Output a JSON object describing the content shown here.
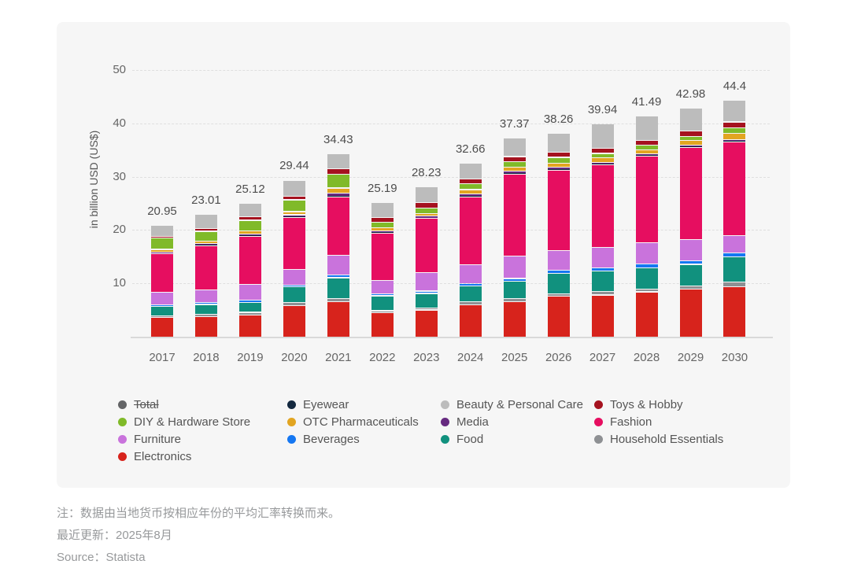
{
  "chart_data": {
    "type": "bar",
    "stacked": true,
    "title": "",
    "xlabel": "",
    "ylabel": "in billion USD (US$)",
    "ylim": [
      0,
      50
    ],
    "yticks": [
      10,
      20,
      30,
      40,
      50
    ],
    "grid": "horizontal-dashed",
    "categories": [
      "2017",
      "2018",
      "2019",
      "2020",
      "2021",
      "2022",
      "2023",
      "2024",
      "2025",
      "2026",
      "2027",
      "2028",
      "2029",
      "2030"
    ],
    "totals": [
      20.95,
      23.01,
      25.12,
      29.44,
      34.43,
      25.19,
      28.23,
      32.66,
      37.37,
      38.26,
      39.94,
      41.49,
      42.98,
      44.4
    ],
    "total_labels": [
      "20.95",
      "23.01",
      "25.12",
      "29.44",
      "34.43",
      "25.19",
      "28.23",
      "32.66",
      "37.37",
      "38.26",
      "39.94",
      "41.49",
      "42.98",
      "44.4"
    ],
    "series": [
      {
        "name": "Electronics",
        "color": "#d7231c",
        "values": [
          3.7,
          3.85,
          4.2,
          5.9,
          6.6,
          4.62,
          5.1,
          6.1,
          6.7,
          7.7,
          7.9,
          8.5,
          9.0,
          9.5
        ]
      },
      {
        "name": "Household Essentials",
        "color": "#8e9093",
        "values": [
          0.35,
          0.4,
          0.45,
          0.65,
          0.65,
          0.35,
          0.4,
          0.55,
          0.55,
          0.45,
          0.7,
          0.55,
          0.55,
          0.85
        ]
      },
      {
        "name": "Food",
        "color": "#11917e",
        "values": [
          1.7,
          1.9,
          1.8,
          2.85,
          3.9,
          2.8,
          2.7,
          2.9,
          3.2,
          3.8,
          3.85,
          4.0,
          4.1,
          4.7
        ]
      },
      {
        "name": "Beverages",
        "color": "#1577f2",
        "values": [
          0.25,
          0.3,
          0.45,
          0.4,
          0.55,
          0.3,
          0.45,
          0.55,
          0.55,
          0.55,
          0.55,
          0.65,
          0.7,
          0.75
        ]
      },
      {
        "name": "Furniture",
        "color": "#c973dc",
        "values": [
          2.4,
          2.45,
          3.0,
          2.9,
          3.7,
          2.6,
          3.5,
          3.45,
          4.2,
          3.75,
          3.8,
          4.0,
          4.0,
          3.2
        ]
      },
      {
        "name": "Fashion",
        "color": "#e60e60",
        "values": [
          7.2,
          8.3,
          9.0,
          9.8,
          10.85,
          8.9,
          10.1,
          12.8,
          15.4,
          15.1,
          15.5,
          16.2,
          17.2,
          17.6
        ]
      },
      {
        "name": "Eyewear",
        "color": "#13283f",
        "values": [
          0.05,
          0.06,
          0.07,
          0.09,
          0.1,
          0.07,
          0.08,
          0.09,
          0.1,
          0.1,
          0.1,
          0.1,
          0.1,
          0.1
        ]
      },
      {
        "name": "Media",
        "color": "#662a80",
        "values": [
          0.3,
          0.3,
          0.4,
          0.35,
          0.6,
          0.3,
          0.35,
          0.4,
          0.45,
          0.4,
          0.4,
          0.35,
          0.35,
          0.3
        ]
      },
      {
        "name": "OTC Pharmaceuticals",
        "color": "#e2a521",
        "values": [
          0.5,
          0.5,
          0.55,
          0.6,
          1.0,
          0.55,
          0.55,
          0.82,
          0.67,
          0.76,
          0.8,
          0.79,
          0.83,
          1.25
        ]
      },
      {
        "name": "DIY & Hardware Store",
        "color": "#80ba29",
        "values": [
          2.1,
          1.8,
          2.0,
          2.2,
          2.6,
          1.1,
          1.0,
          1.1,
          1.1,
          1.1,
          0.84,
          0.85,
          0.85,
          1.0
        ]
      },
      {
        "name": "Toys & Hobby",
        "color": "#a5121f",
        "values": [
          0.3,
          0.55,
          0.7,
          0.7,
          1.0,
          0.9,
          0.95,
          0.95,
          0.95,
          0.95,
          0.95,
          0.95,
          0.95,
          1.1
        ]
      },
      {
        "name": "Beauty & Personal Care",
        "color": "#bcbcbc",
        "values": [
          2.1,
          2.6,
          2.5,
          3.0,
          2.88,
          2.7,
          3.05,
          2.95,
          3.5,
          3.6,
          4.55,
          4.55,
          4.35,
          4.05
        ]
      }
    ],
    "legend_position": "bottom"
  },
  "legend": {
    "columns": [
      [
        {
          "label": "Total",
          "color": "#636466",
          "disabled": true
        },
        {
          "label": "DIY & Hardware Store",
          "color": "#80ba29",
          "disabled": false
        },
        {
          "label": "Furniture",
          "color": "#c973dc",
          "disabled": false
        },
        {
          "label": "Electronics",
          "color": "#d7231c",
          "disabled": false
        }
      ],
      [
        {
          "label": "Eyewear",
          "color": "#13283f",
          "disabled": false
        },
        {
          "label": "OTC Pharmaceuticals",
          "color": "#e2a521",
          "disabled": false
        },
        {
          "label": "Beverages",
          "color": "#1577f2",
          "disabled": false
        }
      ],
      [
        {
          "label": "Beauty & Personal Care",
          "color": "#bcbcbc",
          "disabled": false
        },
        {
          "label": "Media",
          "color": "#662a80",
          "disabled": false
        },
        {
          "label": "Food",
          "color": "#11917e",
          "disabled": false
        }
      ],
      [
        {
          "label": "Toys & Hobby",
          "color": "#a5121f",
          "disabled": false
        },
        {
          "label": "Fashion",
          "color": "#e60e60",
          "disabled": false
        },
        {
          "label": "Household Essentials",
          "color": "#8e9093",
          "disabled": false
        }
      ]
    ]
  },
  "notes": {
    "line1": "注：数据由当地货币按相应年份的平均汇率转换而来。",
    "line2": "最近更新：2025年8月",
    "line3": "Source：Statista"
  }
}
